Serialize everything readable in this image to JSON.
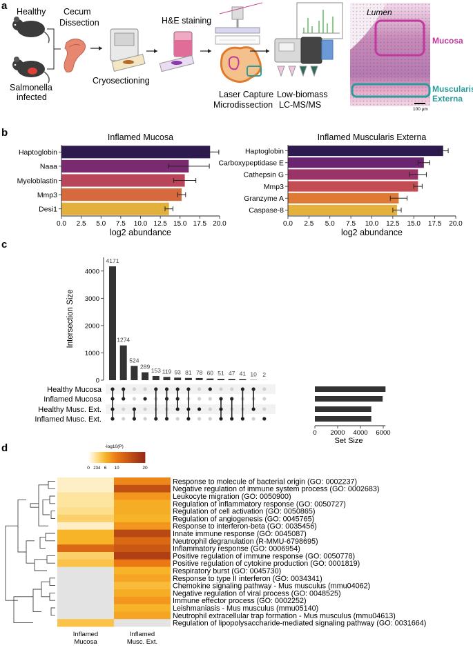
{
  "panel_a": {
    "letter": "a",
    "label_healthy": "Healthy",
    "label_infected_1": "Salmonella",
    "label_infected_2": "infected",
    "label_cecum_1": "Cecum",
    "label_cecum_2": "Dissection",
    "label_cryo": "Cryosectioning",
    "label_he": "H&E staining",
    "label_lcm_1": "Laser Capture",
    "label_lcm_2": "Microdissection",
    "label_ms_1": "Low-biomass",
    "label_ms_2": "LC-MS/MS",
    "label_lumen": "Lumen",
    "label_mucosa": "Mucosa",
    "label_muscularis_1": "Muscularis",
    "label_muscularis_2": "Externa",
    "scale_bar": "100 µm",
    "colors": {
      "mucosa": "#c2389c",
      "muscularis": "#2a9d9a"
    }
  },
  "panel_b": {
    "letter": "b"
  },
  "panel_c": {
    "letter": "c"
  },
  "panel_d": {
    "letter": "d"
  },
  "chart_data": [
    {
      "id": "b_left",
      "type": "bar",
      "orientation": "horizontal",
      "title": "Inflamed Mucosa",
      "xlabel": "log2 abundance",
      "xlim": [
        0,
        20
      ],
      "xticks": [
        0,
        2.5,
        5,
        7.5,
        10,
        12.5,
        15,
        17.5,
        20
      ],
      "xtick_labels": [
        "0.0",
        "2.5",
        "5.0",
        "7.5",
        "10.0",
        "12.5",
        "15.0",
        "17.5",
        "20.0"
      ],
      "categories": [
        "Haptoglobin",
        "Naaa",
        "Myeloblastin",
        "Mmp3",
        "Desi1"
      ],
      "values": [
        18.8,
        16.1,
        15.6,
        15.2,
        13.6
      ],
      "errors": [
        1.1,
        2.6,
        1.4,
        0.5,
        0.5
      ],
      "colors": [
        "#2d1a4e",
        "#7a2a6e",
        "#b8455a",
        "#d66a3c",
        "#e2b03c"
      ]
    },
    {
      "id": "b_right",
      "type": "bar",
      "orientation": "horizontal",
      "title": "Inflamed Muscularis Externa",
      "xlabel": "log2 abundance",
      "xlim": [
        0,
        20
      ],
      "xticks": [
        0,
        2.5,
        5,
        7.5,
        10,
        12.5,
        15,
        17.5,
        20
      ],
      "xtick_labels": [
        "0.0",
        "2.5",
        "5.0",
        "7.5",
        "10.0",
        "12.5",
        "15.0",
        "17.5",
        "20.0"
      ],
      "categories": [
        "Haptoglobin",
        "Carboxypeptidase E",
        "Cathepsin G",
        "Mmp3",
        "Granzyme A",
        "Caspase-8"
      ],
      "values": [
        18.5,
        16.2,
        15.5,
        15.5,
        13.2,
        13.0
      ],
      "errors": [
        0.6,
        0.7,
        1.0,
        0.5,
        1.0,
        0.5
      ],
      "colors": [
        "#2d1a4e",
        "#6a2470",
        "#9a3468",
        "#c34d52",
        "#de7a34",
        "#e6b03c"
      ]
    },
    {
      "id": "c_upset",
      "type": "bar",
      "subtype": "upset",
      "ylabel": "Intersection Size",
      "ylim": [
        0,
        4500
      ],
      "yticks": [
        0,
        1000,
        2000,
        3000,
        4000
      ],
      "intersection_sizes": [
        4171,
        1274,
        524,
        289,
        153,
        119,
        93,
        81,
        78,
        60,
        51,
        47,
        41,
        10,
        2
      ],
      "sets": [
        "Healthy Mucosa",
        "Inflamed Mucosa",
        "Healthy Musc. Ext.",
        "Inflamed Musc. Ext."
      ],
      "set_sizes": [
        6200,
        5950,
        4950,
        4950
      ],
      "set_size_label": "Set Size",
      "set_xlim": [
        0,
        6000
      ],
      "set_xticks": [
        0,
        2000,
        4000,
        6000
      ],
      "memberships": [
        [
          0,
          1,
          2,
          3
        ],
        [
          0,
          1
        ],
        [
          2,
          3
        ],
        [
          1
        ],
        [
          0,
          3
        ],
        [
          0,
          1,
          3
        ],
        [
          0,
          1,
          2
        ],
        [
          0,
          2,
          3
        ],
        [
          2
        ],
        [
          0
        ],
        [
          1,
          2,
          3
        ],
        [
          1,
          3
        ],
        [
          0,
          3
        ],
        [
          0,
          2
        ],
        [
          3
        ]
      ]
    },
    {
      "id": "d_heatmap",
      "type": "heatmap",
      "colorbar_label": "-log10(P)",
      "colorbar_ticks": [
        0,
        2,
        3,
        4,
        6,
        10,
        20
      ],
      "colorbar_tick_label_main": [
        "0",
        "6",
        "10",
        "20"
      ],
      "colorbar_tick_label_small": "234",
      "columns": [
        "Inflamed Mucosa",
        "Inflamed Musc. Ext."
      ],
      "column_labels_line1": [
        "Inflamed",
        "Inflamed"
      ],
      "column_labels_line2": [
        "Mucosa",
        "Musc. Ext."
      ],
      "rows": [
        "Response to molecule of bacterial origin (GO: 0002237)",
        "Negative regulation of immune system process (GO: 0002683)",
        "Leukocyte migration (GO: 0050900)",
        "Regulation of inflammatory response (GO: 0050727)",
        "Regulation of cell activation (GO: 0050865)",
        "Regulation of angiogenesis (GO: 0045765)",
        "Response to interferon-beta (GO: 0035456)",
        "Innate immune response (GO: 0045087)",
        "Neutrophil degranulation (R-MMU-6798695)",
        "Inflammatory response (GO: 0006954)",
        "Positive regulation of immune response (GO: 0050778)",
        "Positive regulation of cytokine production (GO: 0001819)",
        "Respiratory burst (GO: 0045730)",
        "Response to type II interferon (GO: 0034341)",
        "Chemokine signaling pathway - Mus musculus (mmu04062)",
        "Negative regulation of viral process (GO: 0048525)",
        "Immune effector process (GO: 0002252)",
        "Leishmaniasis - Mus musculus (mmu05140)",
        "Neutrophil extracellular trap formation - Mus musculus (mmu04613)",
        "Regulation of lipopolysaccharide-mediated signaling pathway (GO: 0031664)"
      ],
      "values": [
        [
          1.5,
          9
        ],
        [
          1.5,
          15
        ],
        [
          2.5,
          8
        ],
        [
          2.5,
          6.5
        ],
        [
          3,
          6.5
        ],
        [
          4,
          6
        ],
        [
          1.5,
          8
        ],
        [
          6,
          16
        ],
        [
          6,
          12
        ],
        [
          12,
          14
        ],
        [
          4,
          17
        ],
        [
          5,
          10
        ],
        [
          null,
          6
        ],
        [
          null,
          7
        ],
        [
          null,
          5.5
        ],
        [
          null,
          6.5
        ],
        [
          null,
          8
        ],
        [
          null,
          6
        ],
        [
          null,
          7
        ],
        [
          5,
          null
        ]
      ]
    }
  ]
}
